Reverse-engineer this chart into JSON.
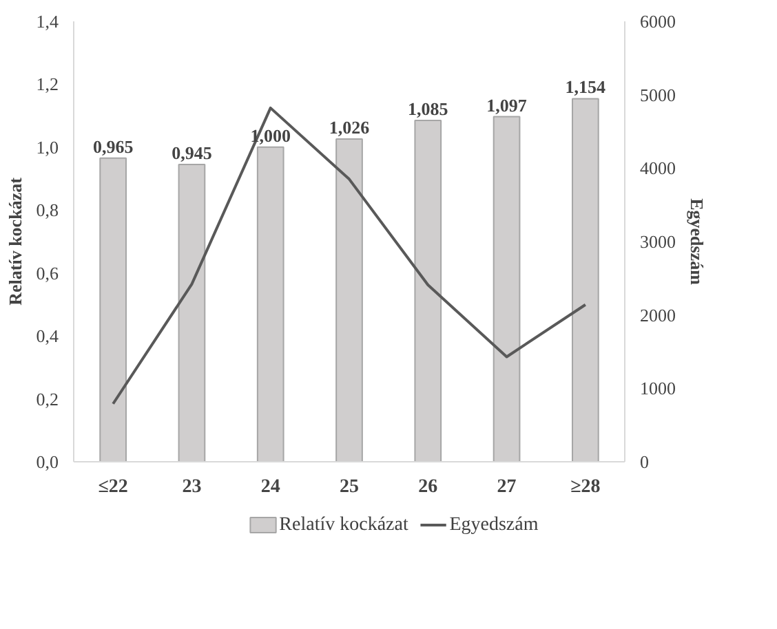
{
  "chart_data": {
    "type": "bar",
    "ylabel": "Relatív kockázat",
    "y2label": "Egyedszám",
    "categories": [
      "≤22",
      "23",
      "24",
      "25",
      "26",
      "27",
      "≥28"
    ],
    "series": [
      {
        "name": "Relatív kockázat",
        "color": "#d0cece",
        "values": [
          0.965,
          0.945,
          1.0,
          1.026,
          1.085,
          1.097,
          1.154
        ],
        "value_labels": [
          "0,965",
          "0,945",
          "1,000",
          "1,026",
          "1,085",
          "1,097",
          "1,154"
        ]
      },
      {
        "name": "Egyedszám",
        "type": "line",
        "axis": "y2",
        "color": "#595959",
        "values": [
          790,
          2420,
          4820,
          3850,
          2410,
          1430,
          2140
        ]
      }
    ],
    "ylim": [
      0,
      1.4
    ],
    "yticks": [
      {
        "value": 0,
        "label": "0,0"
      },
      {
        "value": 0.2,
        "label": "0,2"
      },
      {
        "value": 0.4,
        "label": "0,4"
      },
      {
        "value": 0.6,
        "label": "0,6"
      },
      {
        "value": 0.8,
        "label": "0,8"
      },
      {
        "value": 1.0,
        "label": "1,0"
      },
      {
        "value": 1.2,
        "label": "1,2"
      },
      {
        "value": 1.4,
        "label": "1,4"
      }
    ],
    "y2lim": [
      0,
      6000
    ],
    "y2ticks": [
      0,
      1000,
      2000,
      3000,
      4000,
      5000,
      6000
    ],
    "grid": false,
    "legend": "bottom"
  }
}
